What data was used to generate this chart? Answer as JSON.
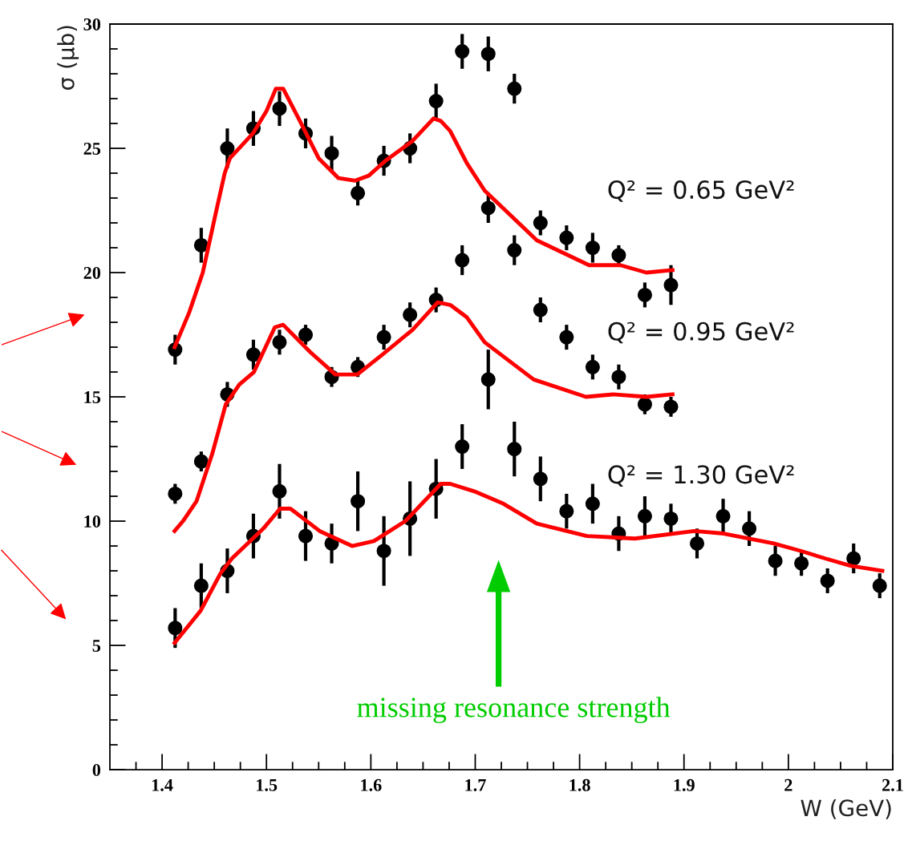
{
  "chart_data": {
    "type": "scatter",
    "xlabel": "W (GeV)",
    "ylabel": "σ (μb)",
    "xlim": [
      1.35,
      2.1
    ],
    "ylim": [
      0,
      30
    ],
    "xticks": [
      {
        "value": 1.375,
        "label": null
      },
      1.4,
      {
        "value": 1.425,
        "label": null
      },
      {
        "value": 1.45,
        "label": null
      },
      {
        "value": 1.475,
        "label": null
      },
      1.5,
      {
        "value": 1.525,
        "label": null
      },
      {
        "value": 1.55,
        "label": null
      },
      {
        "value": 1.575,
        "label": null
      },
      1.6,
      {
        "value": 1.625,
        "label": null
      },
      {
        "value": 1.65,
        "label": null
      },
      {
        "value": 1.675,
        "label": null
      },
      1.7,
      {
        "value": 1.725,
        "label": null
      },
      {
        "value": 1.75,
        "label": null
      },
      {
        "value": 1.775,
        "label": null
      },
      1.8,
      {
        "value": 1.825,
        "label": null
      },
      {
        "value": 1.85,
        "label": null
      },
      {
        "value": 1.875,
        "label": null
      },
      1.9,
      {
        "value": 1.925,
        "label": null
      },
      {
        "value": 1.95,
        "label": null
      },
      {
        "value": 1.975,
        "label": null
      },
      2,
      {
        "value": 2.025,
        "label": null
      },
      {
        "value": 2.05,
        "label": null
      },
      {
        "value": 2.075,
        "label": null
      },
      2.1
    ],
    "yticks": [
      0,
      {
        "value": 1,
        "label": null
      },
      {
        "value": 2,
        "label": null
      },
      {
        "value": 3,
        "label": null
      },
      {
        "value": 4,
        "label": null
      },
      5,
      {
        "value": 6,
        "label": null
      },
      {
        "value": 7,
        "label": null
      },
      {
        "value": 8,
        "label": null
      },
      {
        "value": 9,
        "label": null
      },
      10,
      {
        "value": 11,
        "label": null
      },
      {
        "value": 12,
        "label": null
      },
      {
        "value": 13,
        "label": null
      },
      {
        "value": 14,
        "label": null
      },
      15,
      {
        "value": 16,
        "label": null
      },
      {
        "value": 17,
        "label": null
      },
      {
        "value": 18,
        "label": null
      },
      {
        "value": 19,
        "label": null
      },
      20,
      {
        "value": 21,
        "label": null
      },
      {
        "value": 22,
        "label": null
      },
      {
        "value": 23,
        "label": null
      },
      {
        "value": 24,
        "label": null
      },
      25,
      {
        "value": 26,
        "label": null
      },
      {
        "value": 27,
        "label": null
      },
      {
        "value": 28,
        "label": null
      },
      {
        "value": 29,
        "label": null
      },
      30
    ],
    "grid": false,
    "series": [
      {
        "color": "#000000",
        "marker": "circle",
        "x": [
          1.4125,
          1.4375,
          1.4625,
          1.4875,
          1.5125,
          1.5375,
          1.5625,
          1.5875,
          1.6125,
          1.6375,
          1.6625,
          1.6875,
          1.7125,
          1.7375,
          1.7625,
          1.7875,
          1.8125,
          1.8375,
          1.8625,
          1.8875
        ],
        "values": [
          16.9,
          21.1,
          25.0,
          25.8,
          26.6,
          25.6,
          24.8,
          23.2,
          24.5,
          25.0,
          26.9,
          28.9,
          28.8,
          27.4,
          22.0,
          21.4,
          21.0,
          20.7,
          19.1,
          19.5
        ],
        "errors": [
          0.6,
          0.7,
          0.8,
          0.7,
          0.7,
          0.6,
          0.7,
          0.5,
          0.6,
          0.6,
          0.7,
          0.7,
          0.7,
          0.6,
          0.5,
          0.5,
          0.6,
          0.4,
          0.5,
          0.8
        ]
      },
      {
        "color": "#000000",
        "marker": "circle",
        "x": [
          1.4125,
          1.4375,
          1.4625,
          1.4875,
          1.5125,
          1.5375,
          1.5625,
          1.5875,
          1.6125,
          1.6375,
          1.6625,
          1.6875,
          1.7125,
          1.7375,
          1.7625,
          1.7875,
          1.8125,
          1.8375,
          1.8625,
          1.8875
        ],
        "values": [
          11.1,
          12.4,
          15.1,
          16.7,
          17.2,
          17.5,
          15.8,
          16.2,
          17.4,
          18.3,
          18.9,
          20.5,
          22.6,
          20.9,
          18.5,
          17.4,
          16.2,
          15.8,
          14.7,
          14.6
        ],
        "errors": [
          0.4,
          0.4,
          0.5,
          0.6,
          0.5,
          0.4,
          0.4,
          0.4,
          0.5,
          0.5,
          0.5,
          0.6,
          0.6,
          0.6,
          0.5,
          0.5,
          0.5,
          0.5,
          0.4,
          0.4
        ]
      },
      {
        "color": "#000000",
        "marker": "circle",
        "x": [
          1.4125,
          1.4375,
          1.4625,
          1.4875,
          1.5125,
          1.5375,
          1.5625,
          1.5875,
          1.6125,
          1.6375,
          1.6625,
          1.6875,
          1.7125,
          1.7375,
          1.7625,
          1.7875,
          1.8125,
          1.8375,
          1.8625,
          1.8875,
          1.9125,
          1.9375,
          1.9625,
          1.9875,
          2.0125,
          2.0375,
          2.0625,
          2.0875
        ],
        "values": [
          5.7,
          7.4,
          8.0,
          9.4,
          11.2,
          9.4,
          9.1,
          10.8,
          8.8,
          10.1,
          11.3,
          13.0,
          15.7,
          12.9,
          11.7,
          10.4,
          10.7,
          9.5,
          10.2,
          10.1,
          9.1,
          10.2,
          9.7,
          8.4,
          8.3,
          7.6,
          8.5,
          7.4
        ],
        "errors": [
          0.8,
          0.9,
          0.9,
          0.9,
          1.1,
          1.0,
          0.8,
          1.2,
          1.4,
          1.5,
          1.2,
          0.9,
          1.2,
          1.1,
          0.9,
          0.7,
          0.8,
          0.7,
          0.8,
          0.6,
          0.6,
          0.7,
          0.7,
          0.6,
          0.5,
          0.5,
          0.6,
          0.5
        ]
      },
      {
        "type": "line",
        "color": "#ff0000",
        "marker": "none",
        "x": [
          1.412,
          1.426,
          1.439,
          1.452,
          1.46,
          1.465,
          1.487,
          1.5,
          1.509,
          1.516,
          1.532,
          1.55,
          1.569,
          1.585,
          1.598,
          1.614,
          1.64,
          1.66,
          1.667,
          1.676,
          1.692,
          1.709,
          1.759,
          1.809,
          1.839,
          1.864,
          1.889
        ],
        "values": [
          17.0,
          18.4,
          20.0,
          22.5,
          24.0,
          24.6,
          25.6,
          26.5,
          27.4,
          27.4,
          26.1,
          24.6,
          23.8,
          23.7,
          23.9,
          24.5,
          25.3,
          26.2,
          26.1,
          25.7,
          24.4,
          23.3,
          21.3,
          20.3,
          20.3,
          20.0,
          20.1
        ]
      },
      {
        "type": "line",
        "color": "#ff0000",
        "marker": "none",
        "x": [
          1.412,
          1.42,
          1.433,
          1.448,
          1.461,
          1.474,
          1.488,
          1.508,
          1.516,
          1.542,
          1.566,
          1.587,
          1.611,
          1.64,
          1.664,
          1.676,
          1.692,
          1.709,
          1.756,
          1.806,
          1.832,
          1.864,
          1.889
        ],
        "values": [
          9.6,
          10.0,
          10.8,
          12.7,
          14.7,
          15.5,
          16.0,
          17.8,
          17.9,
          16.8,
          15.9,
          15.9,
          16.7,
          17.7,
          18.8,
          18.7,
          18.2,
          17.2,
          15.7,
          15.0,
          15.1,
          15.0,
          15.1
        ]
      },
      {
        "type": "line",
        "color": "#ff0000",
        "marker": "none",
        "x": [
          1.412,
          1.437,
          1.456,
          1.467,
          1.497,
          1.513,
          1.523,
          1.551,
          1.582,
          1.603,
          1.633,
          1.667,
          1.676,
          1.699,
          1.727,
          1.759,
          1.807,
          1.853,
          1.91,
          1.938,
          1.986,
          2.012,
          2.035,
          2.06,
          2.09
        ],
        "values": [
          5.1,
          6.4,
          7.9,
          8.5,
          9.7,
          10.5,
          10.5,
          9.6,
          9.0,
          9.2,
          10.0,
          11.5,
          11.5,
          11.2,
          10.7,
          9.9,
          9.4,
          9.3,
          9.6,
          9.5,
          9.1,
          8.8,
          8.5,
          8.2,
          8.0
        ]
      }
    ],
    "annotations": [
      "Q² = 0.65 GeV²",
      "Q² = 0.95 GeV²",
      "Q² = 1.30 GeV²",
      "missing resonance strength"
    ]
  }
}
